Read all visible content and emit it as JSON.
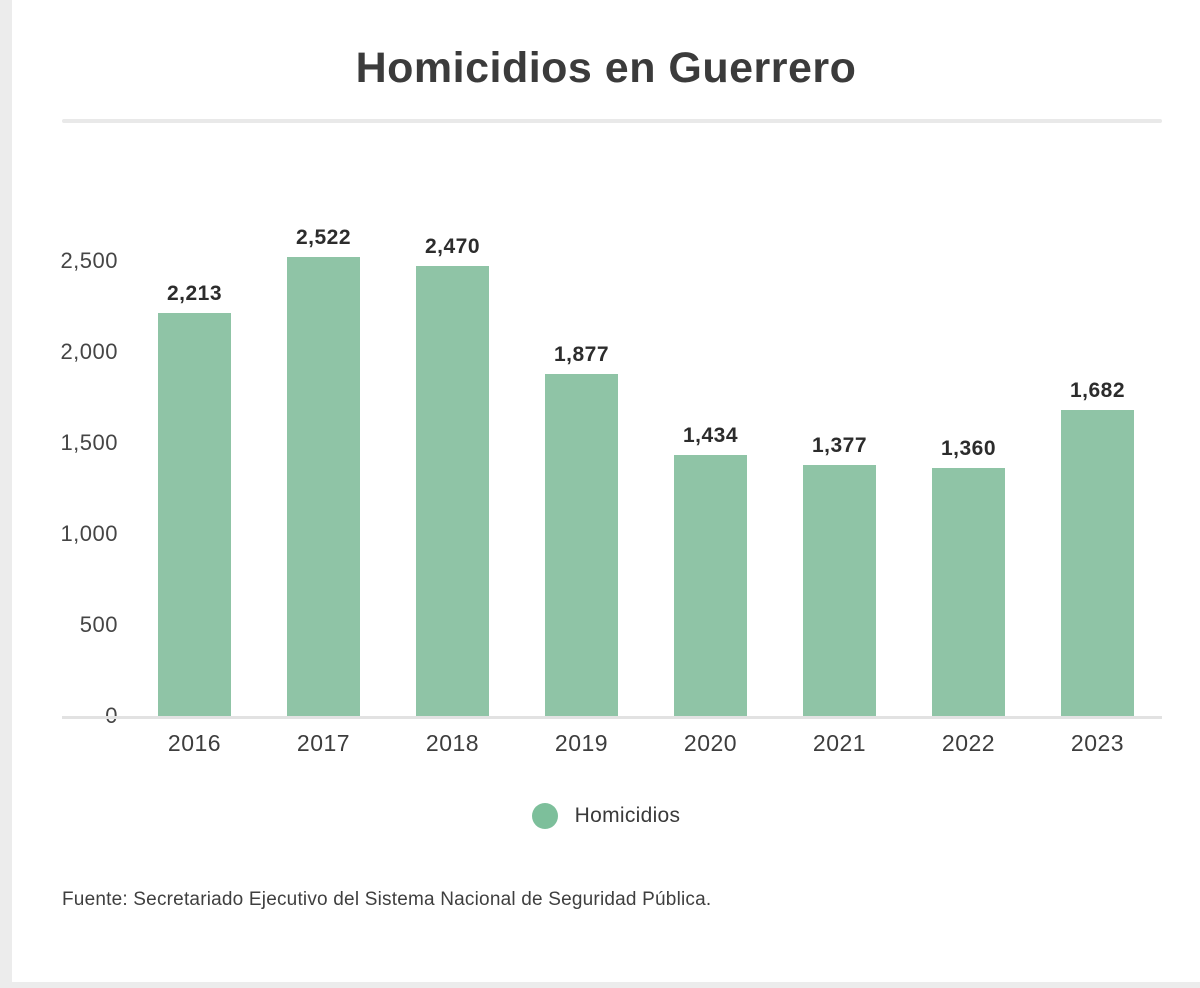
{
  "page": {
    "title": "Homicidios en Guerrero",
    "source": "Fuente: Secretariado Ejecutivo del Sistema Nacional de Seguridad Pública."
  },
  "legend": {
    "label": "Homicidios"
  },
  "colors": {
    "bar": "#8fc4a6",
    "legend_dot": "#7dbf9b",
    "title_text": "#3b3b3b",
    "axis_line": "#e2e2e2",
    "divider": "#e9e9e9"
  },
  "chart_data": {
    "type": "bar",
    "title": "Homicidios en Guerrero",
    "series_name": "Homicidios",
    "categories": [
      "2016",
      "2017",
      "2018",
      "2019",
      "2020",
      "2021",
      "2022",
      "2023"
    ],
    "values": [
      2213,
      2522,
      2470,
      1877,
      1434,
      1377,
      1360,
      1682
    ],
    "value_labels": [
      "2,213",
      "2,522",
      "2,470",
      "1,877",
      "1,434",
      "1,377",
      "1,360",
      "1,682"
    ],
    "y_ticks": [
      {
        "value": 0,
        "label": "0"
      },
      {
        "value": 500,
        "label": "500"
      },
      {
        "value": 1000,
        "label": "1,000"
      },
      {
        "value": 1500,
        "label": "1,500"
      },
      {
        "value": 2000,
        "label": "2,000"
      },
      {
        "value": 2500,
        "label": "2,500"
      }
    ],
    "ylim": [
      0,
      2730
    ],
    "xlabel": "",
    "ylabel": "",
    "grid": false,
    "legend_position": "bottom",
    "source_note": "Fuente: Secretariado Ejecutivo del Sistema Nacional de Seguridad Pública."
  }
}
